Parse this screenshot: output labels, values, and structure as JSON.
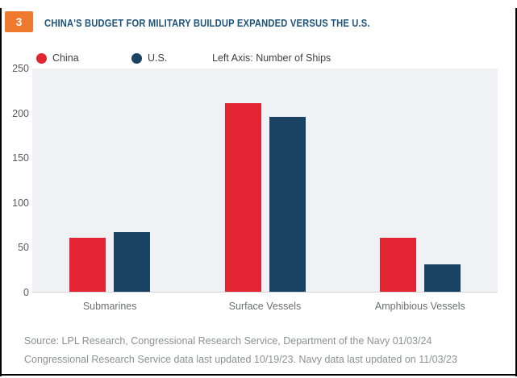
{
  "figure_number": "3",
  "title": "CHINA'S BUDGET FOR MILITARY BUILDUP EXPANDED VERSUS THE U.S.",
  "legend": {
    "china": "China",
    "us": "U.S.",
    "axis_note": "Left Axis: Number of Ships"
  },
  "chart_data": {
    "type": "bar",
    "categories": [
      "Submarines",
      "Surface Vessels",
      "Amphibious Vessels"
    ],
    "series": [
      {
        "name": "China",
        "color": "#e32433",
        "values": [
          60,
          210,
          60
        ]
      },
      {
        "name": "U.S.",
        "color": "#1a4263",
        "values": [
          67,
          195,
          31
        ]
      }
    ],
    "title": "CHINA'S BUDGET FOR MILITARY BUILDUP EXPANDED VERSUS THE U.S.",
    "xlabel": "",
    "ylabel": "Left Axis: Number of Ships",
    "ylim": [
      0,
      250
    ],
    "yticks": [
      250,
      200,
      150,
      100,
      50,
      0
    ],
    "grid": false,
    "legend_position": "top-left"
  },
  "source": {
    "line1": "Source: LPL Research, Congressional Research Service, Department of the Navy 01/03/24",
    "line2": "Congressional Research Service data last updated 10/19/23. Navy data last updated on 11/03/23"
  },
  "colors": {
    "accent_orange": "#ee7a30",
    "china_red": "#e32433",
    "us_navy": "#1a4263",
    "title_blue": "#1c537a",
    "plot_background": "#eff1f4"
  }
}
